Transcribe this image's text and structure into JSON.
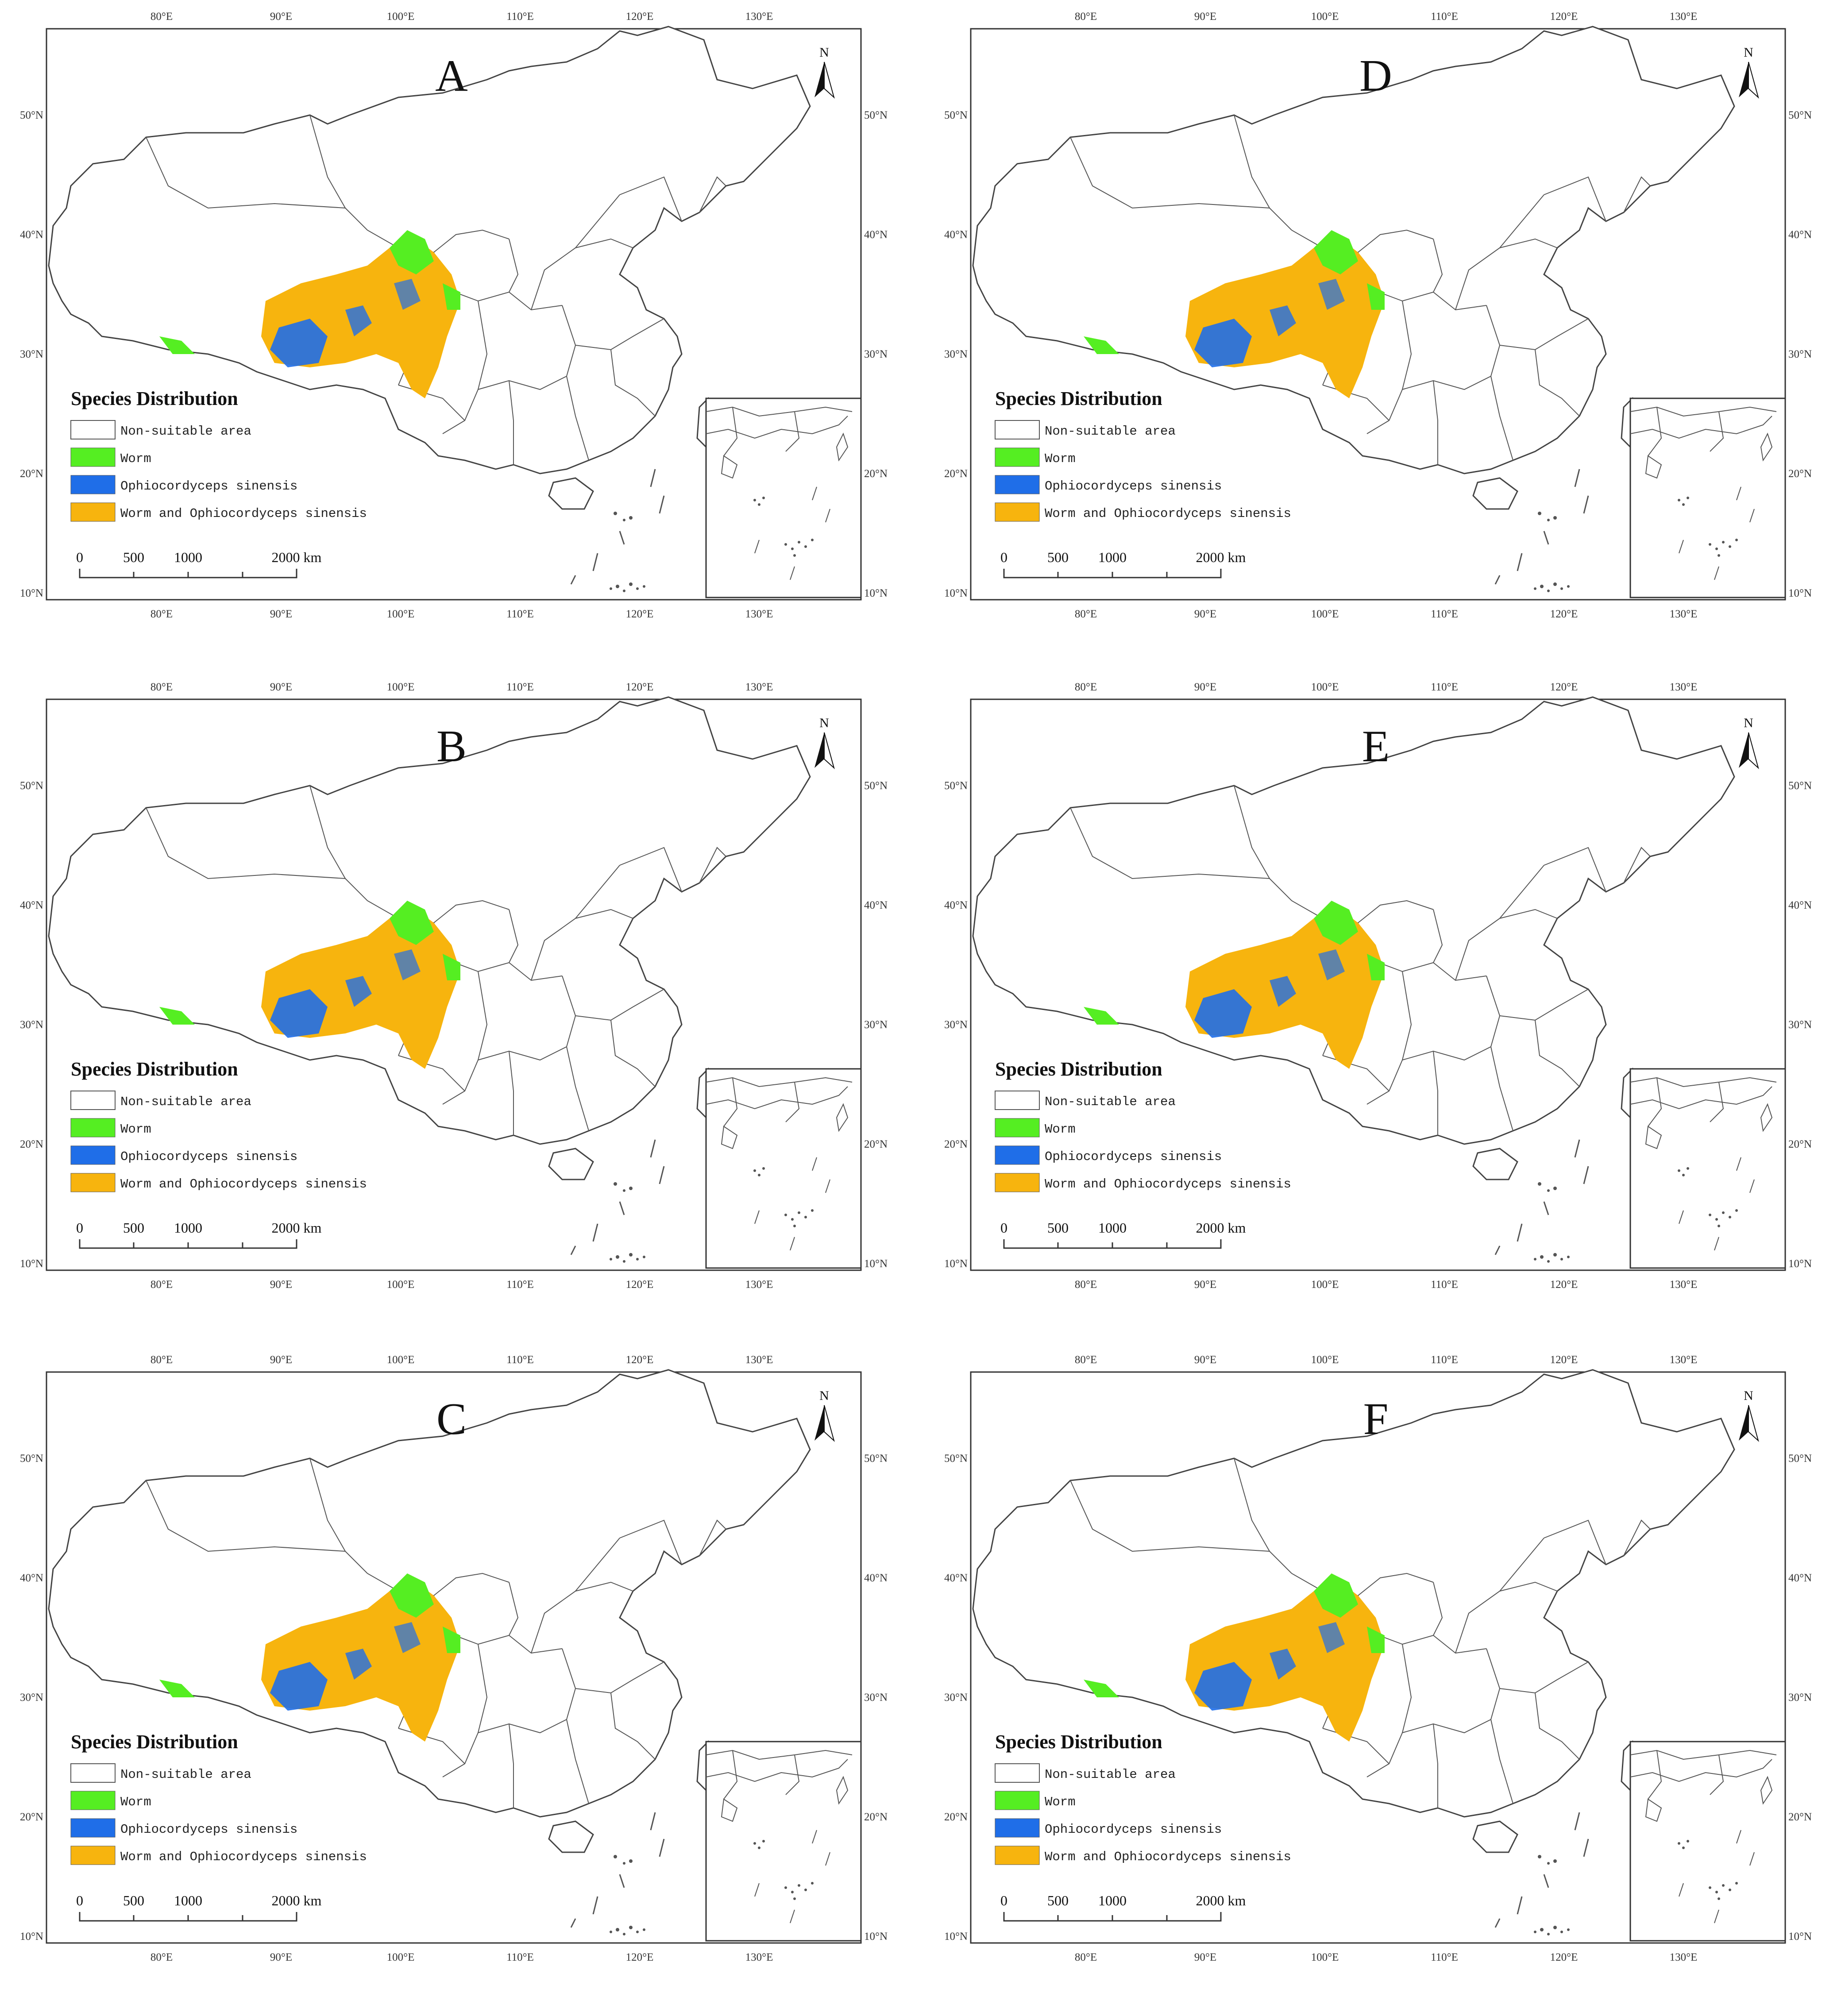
{
  "panels": [
    {
      "label": "A"
    },
    {
      "label": "D"
    },
    {
      "label": "B"
    },
    {
      "label": "E"
    },
    {
      "label": "C"
    },
    {
      "label": "F"
    }
  ],
  "axes": {
    "lon_ticks": [
      "80°E",
      "90°E",
      "100°E",
      "110°E",
      "120°E",
      "130°E"
    ],
    "lat_ticks_left": [
      "50°N",
      "40°N",
      "30°N",
      "20°N",
      "10°N"
    ],
    "lat_ticks_right": [
      "50°N",
      "40°N",
      "30°N",
      "20°N",
      "10°N"
    ]
  },
  "north_arrow": {
    "label": "N",
    "icon": "north-arrow-icon"
  },
  "legend": {
    "title": "Species Distribution",
    "items": [
      {
        "label": "Non-suitable area",
        "color": "#ffffff"
      },
      {
        "label": "Worm",
        "color": "#55ee22"
      },
      {
        "label": "Ophiocordyceps sinensis",
        "color": "#1f6ee8"
      },
      {
        "label": "Worm and Ophiocordyceps sinensis",
        "color": "#f7b40e"
      }
    ]
  },
  "scale_bar": {
    "labels": [
      "0",
      "500",
      "1000",
      "2000 km"
    ]
  }
}
